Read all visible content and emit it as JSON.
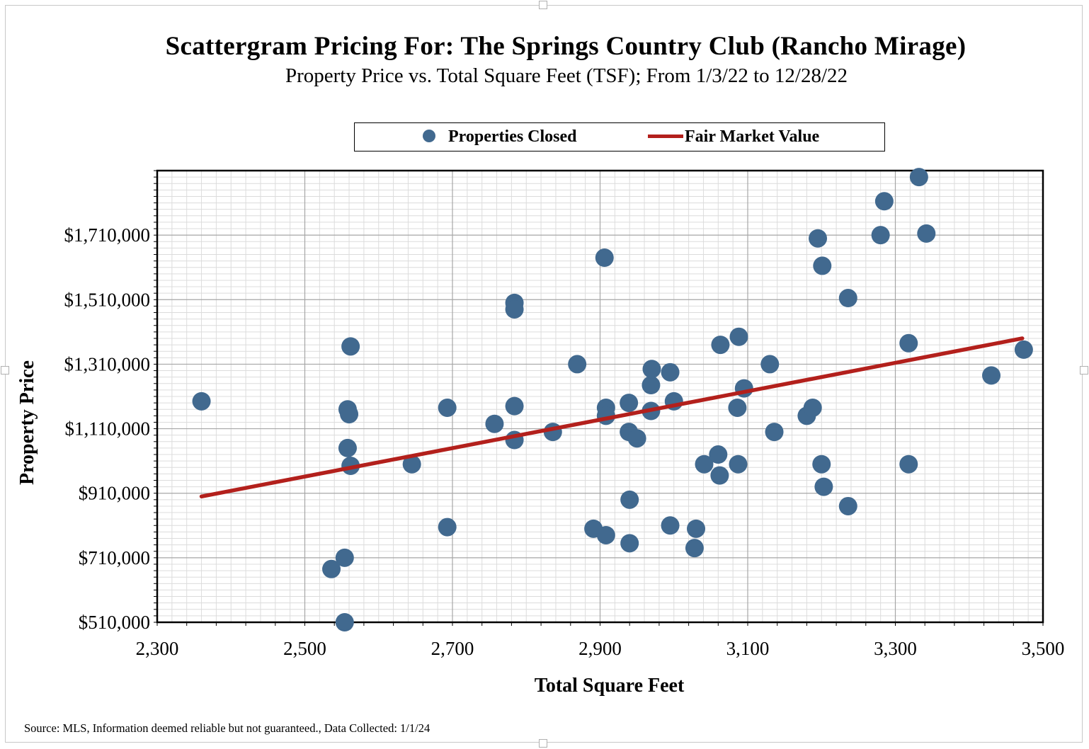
{
  "colors": {
    "point": "#41698f",
    "trend": "#b3201c",
    "grid_major": "#a6a6a6",
    "grid_minor": "#dcdcdc"
  },
  "legend": {
    "points_label": "Properties Closed",
    "trend_label": "Fair Market Value"
  },
  "source_note": "Source: MLS, Information deemed reliable but not guaranteed., Data Collected: 1/1/24",
  "chart_data": {
    "type": "scatter",
    "title": "Scattergram Pricing For: The Springs Country Club (Rancho Mirage)",
    "subtitle": "Property Price vs. Total Square Feet (TSF); From 1/3/22 to 12/28/22",
    "xlabel": "Total Square Feet",
    "ylabel": "Property Price",
    "xlim": [
      2300,
      3500
    ],
    "ylim": [
      510000,
      1910000
    ],
    "xticks": [
      2300,
      2500,
      2700,
      2900,
      3100,
      3300,
      3500
    ],
    "xtick_labels": [
      "2,300",
      "2,500",
      "2,700",
      "2,900",
      "3,100",
      "3,300",
      "3,500"
    ],
    "yticks": [
      510000,
      710000,
      910000,
      1110000,
      1310000,
      1510000,
      1710000
    ],
    "ytick_labels": [
      "$510,000",
      "$710,000",
      "$910,000",
      "$1,110,000",
      "$1,310,000",
      "$1,510,000",
      "$1,710,000"
    ],
    "series": [
      {
        "name": "Properties Closed",
        "points": [
          [
            2360,
            1195000
          ],
          [
            2536,
            675000
          ],
          [
            2554,
            710000
          ],
          [
            2554,
            510000
          ],
          [
            2558,
            1050000
          ],
          [
            2558,
            1170000
          ],
          [
            2560,
            1155000
          ],
          [
            2562,
            995000
          ],
          [
            2562,
            1365000
          ],
          [
            2645,
            1000000
          ],
          [
            2693,
            1175000
          ],
          [
            2693,
            805000
          ],
          [
            2757,
            1125000
          ],
          [
            2784,
            1500000
          ],
          [
            2784,
            1480000
          ],
          [
            2784,
            1180000
          ],
          [
            2784,
            1075000
          ],
          [
            2836,
            1100000
          ],
          [
            2869,
            1310000
          ],
          [
            2891,
            800000
          ],
          [
            2906,
            1640000
          ],
          [
            2908,
            1175000
          ],
          [
            2908,
            1150000
          ],
          [
            2908,
            780000
          ],
          [
            2939,
            1190000
          ],
          [
            2939,
            1100000
          ],
          [
            2940,
            890000
          ],
          [
            2940,
            755000
          ],
          [
            2950,
            1080000
          ],
          [
            2969,
            1165000
          ],
          [
            2969,
            1245000
          ],
          [
            2970,
            1295000
          ],
          [
            2995,
            1285000
          ],
          [
            2995,
            810000
          ],
          [
            3000,
            1195000
          ],
          [
            3028,
            740000
          ],
          [
            3030,
            800000
          ],
          [
            3041,
            1000000
          ],
          [
            3060,
            1030000
          ],
          [
            3062,
            965000
          ],
          [
            3063,
            1370000
          ],
          [
            3086,
            1175000
          ],
          [
            3087,
            1000000
          ],
          [
            3088,
            1395000
          ],
          [
            3095,
            1235000
          ],
          [
            3130,
            1310000
          ],
          [
            3136,
            1100000
          ],
          [
            3180,
            1150000
          ],
          [
            3188,
            1175000
          ],
          [
            3195,
            1700000
          ],
          [
            3200,
            1000000
          ],
          [
            3201,
            1615000
          ],
          [
            3203,
            930000
          ],
          [
            3236,
            870000
          ],
          [
            3236,
            1515000
          ],
          [
            3280,
            1710000
          ],
          [
            3285,
            1815000
          ],
          [
            3318,
            1000000
          ],
          [
            3318,
            1375000
          ],
          [
            3332,
            1890000
          ],
          [
            3342,
            1715000
          ],
          [
            3430,
            1275000
          ],
          [
            3474,
            1355000
          ]
        ]
      },
      {
        "name": "Fair Market Value",
        "line": [
          [
            2360,
            900000
          ],
          [
            3472,
            1390000
          ]
        ]
      }
    ]
  }
}
